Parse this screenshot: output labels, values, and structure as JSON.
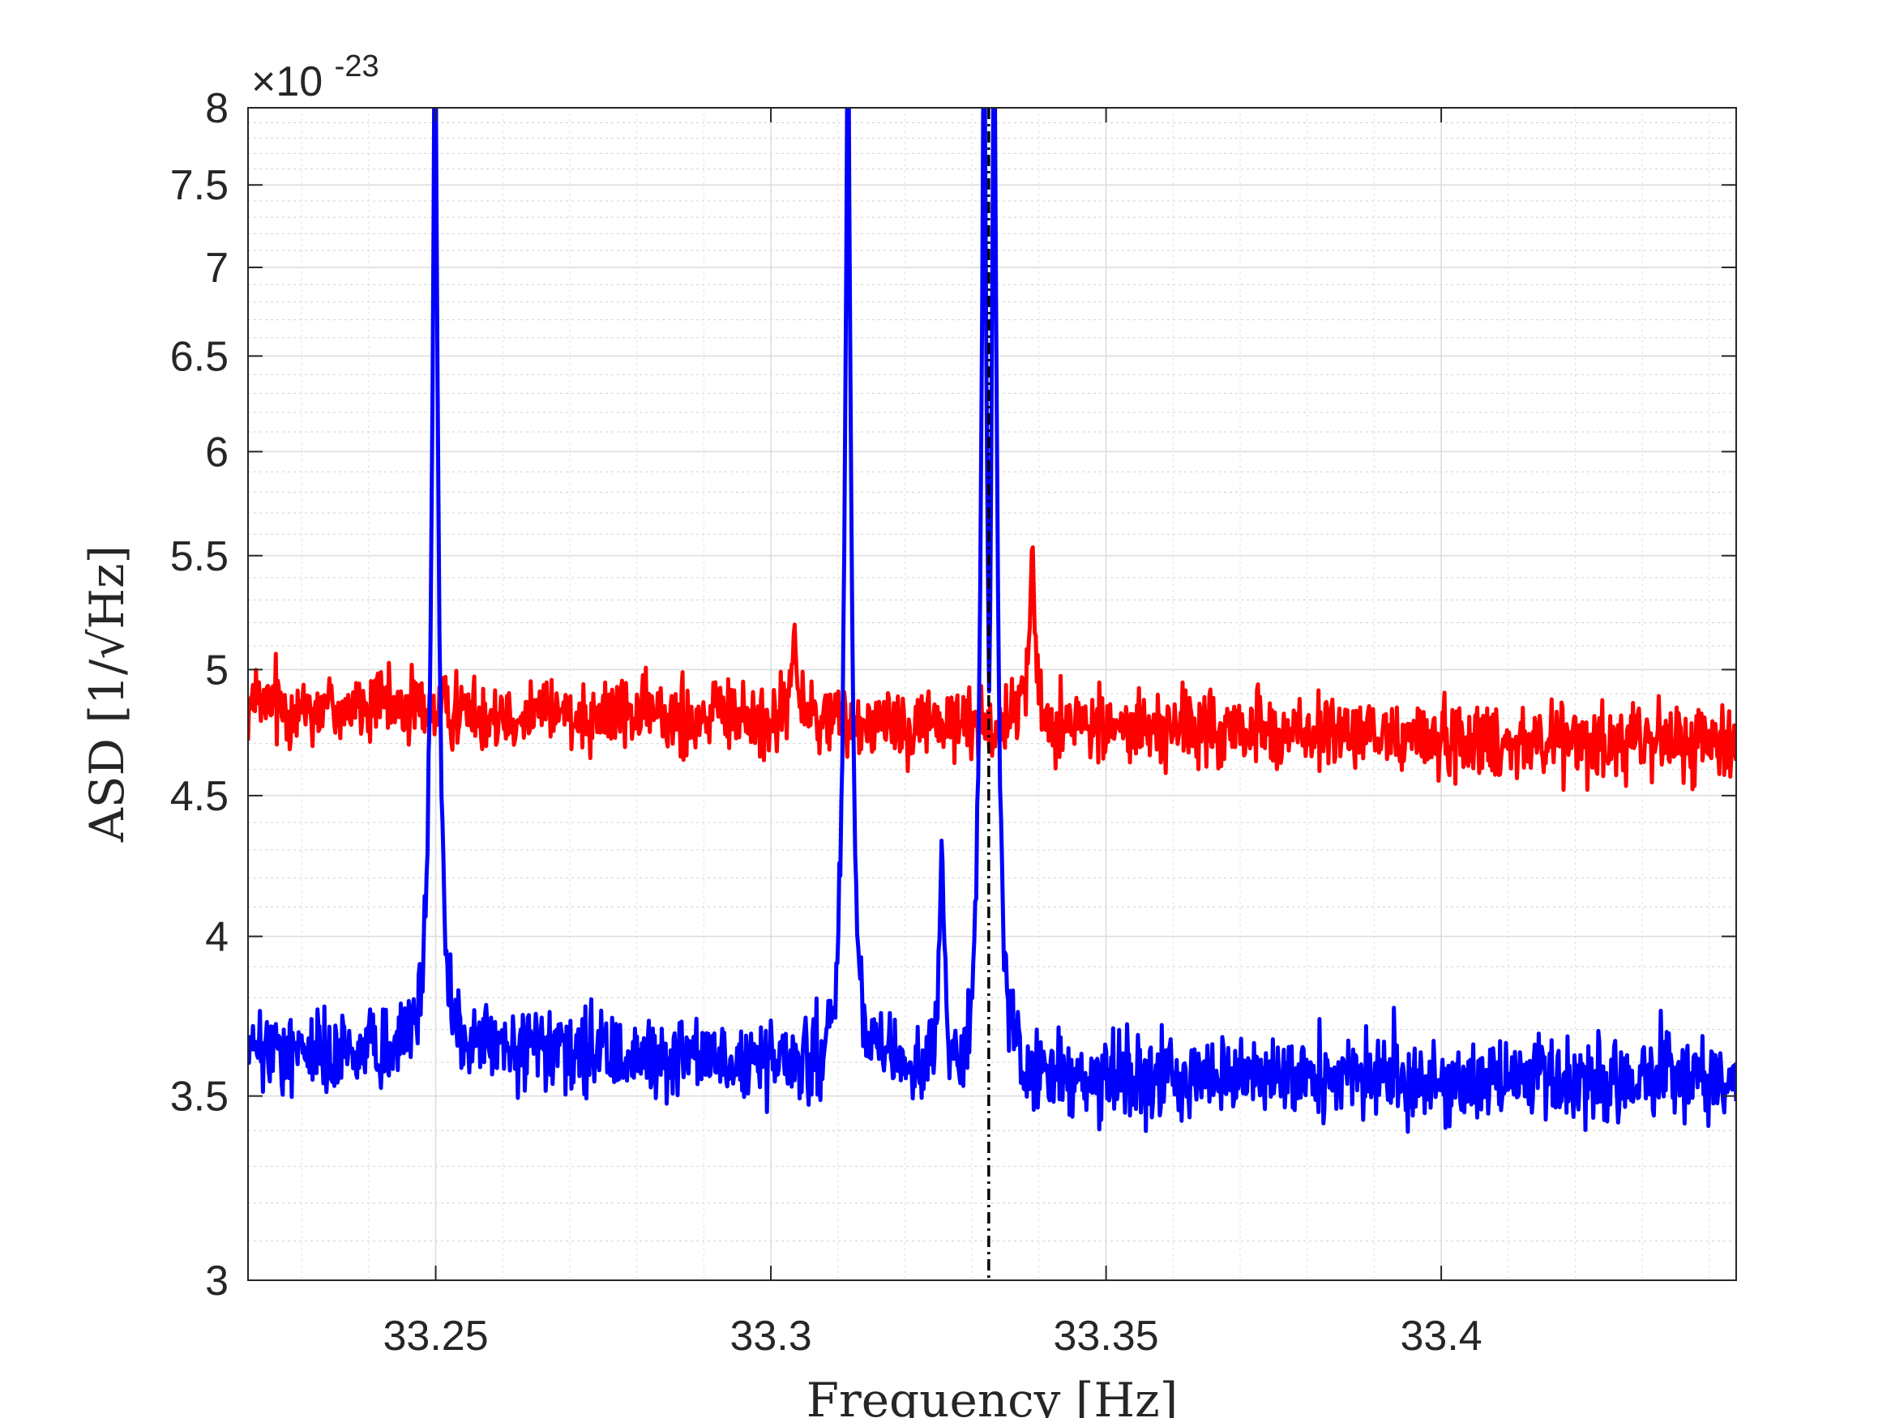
{
  "chart_data": {
    "type": "line",
    "title": "",
    "xlabel": "Frequency [Hz]",
    "ylabel": "ASD [1/√Hz]",
    "y_exponent_label": "×10",
    "y_exponent_power": "-23",
    "xlim": [
      33.222,
      33.444
    ],
    "ylim": [
      3,
      8
    ],
    "y_scale": "log",
    "grid": true,
    "minor_grid": true,
    "legend": "none",
    "x_ticks": [
      33.25,
      33.3,
      33.35,
      33.4
    ],
    "x_tick_labels": [
      "33.25",
      "33.3",
      "33.35",
      "33.4"
    ],
    "y_ticks": [
      3,
      3.5,
      4,
      4.5,
      5,
      5.5,
      6,
      6.5,
      7,
      7.5,
      8
    ],
    "y_tick_labels": [
      "3",
      "3.5",
      "4",
      "4.5",
      "5",
      "5.5",
      "6",
      "6.5",
      "7",
      "7.5",
      "8"
    ],
    "vertical_marker": {
      "x": 33.3325,
      "style": "dash-dot",
      "color": "#000000"
    },
    "series": [
      {
        "color": "#ff0000",
        "baseline": [
          [
            33.222,
            4.85
          ],
          [
            33.25,
            4.84
          ],
          [
            33.3,
            4.8
          ],
          [
            33.35,
            4.77
          ],
          [
            33.4,
            4.72
          ],
          [
            33.444,
            4.7
          ]
        ],
        "noise_amplitude": 0.12,
        "peaks": [
          {
            "x": 33.3035,
            "y": 5.2
          },
          {
            "x": 33.339,
            "y": 5.6
          },
          {
            "x": 33.3375,
            "y": 4.98
          }
        ]
      },
      {
        "color": "#0000ff",
        "baseline": [
          [
            33.222,
            3.63
          ],
          [
            33.25,
            3.65
          ],
          [
            33.3,
            3.6
          ],
          [
            33.35,
            3.56
          ],
          [
            33.4,
            3.55
          ],
          [
            33.444,
            3.55
          ]
        ],
        "noise_amplitude": 0.1,
        "peaks": [
          {
            "x": 33.2499,
            "y": 9.0
          },
          {
            "x": 33.3115,
            "y": 9.0
          },
          {
            "x": 33.3255,
            "y": 4.35
          },
          {
            "x": 33.3318,
            "y": 9.0
          },
          {
            "x": 33.3333,
            "y": 9.0
          }
        ]
      }
    ]
  }
}
